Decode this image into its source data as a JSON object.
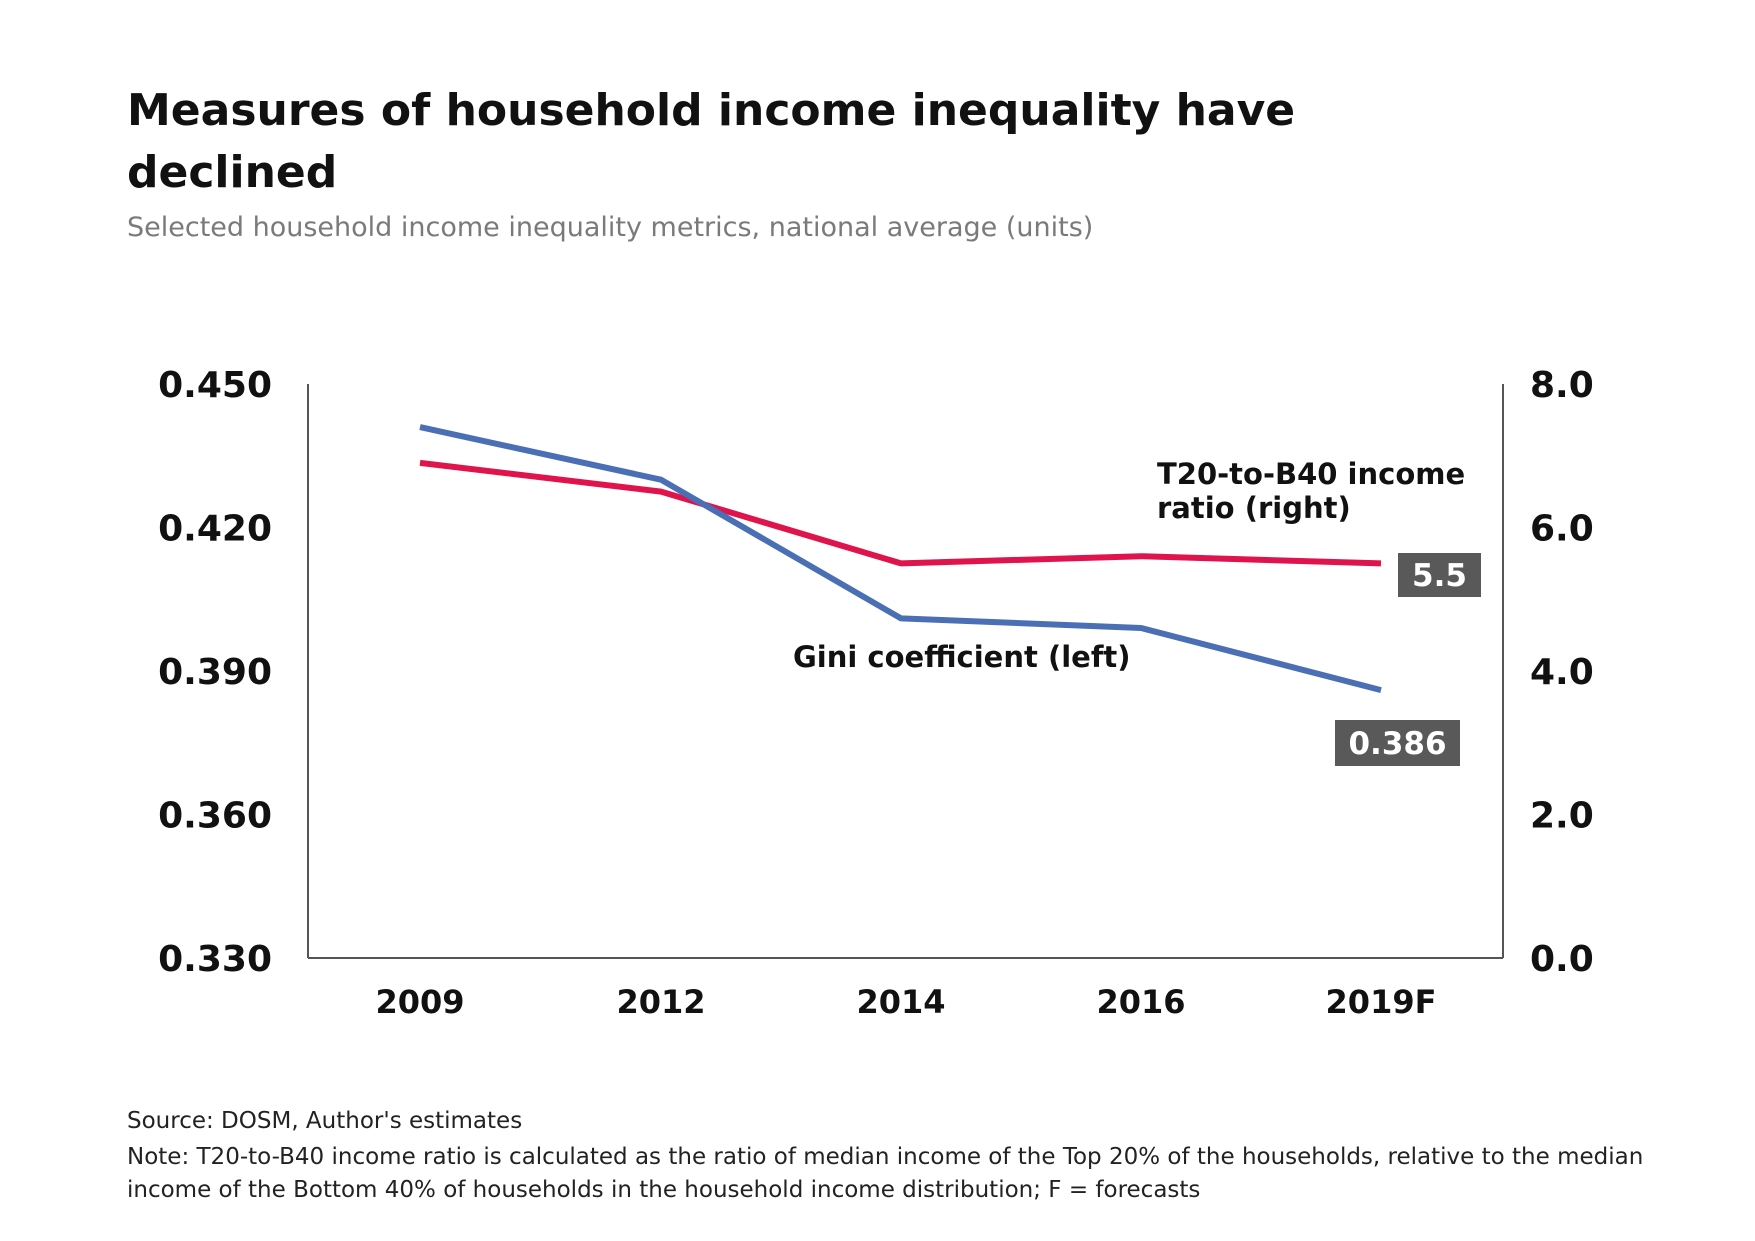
{
  "chart_data": {
    "type": "line",
    "title": "Measures of household income inequality have declined",
    "subtitle": "Selected household income inequality metrics, national average (units)",
    "categories": [
      "2009",
      "2012",
      "2014",
      "2016",
      "2019F"
    ],
    "y_left": {
      "ylim": [
        0.33,
        0.45
      ],
      "ticks": [
        "0.450",
        "0.420",
        "0.390",
        "0.360",
        "0.330"
      ],
      "tick_values": [
        0.45,
        0.42,
        0.39,
        0.36,
        0.33
      ]
    },
    "y_right": {
      "ylim": [
        0.0,
        8.0
      ],
      "ticks": [
        "8.0",
        "6.0",
        "4.0",
        "2.0",
        "0.0"
      ],
      "tick_values": [
        8.0,
        6.0,
        4.0,
        2.0,
        0.0
      ]
    },
    "series": [
      {
        "name": "Gini coefficient (left)",
        "axis": "left",
        "color": "#4a6fb5",
        "values": [
          0.441,
          0.43,
          0.401,
          0.399,
          0.386
        ],
        "end_label": "0.386"
      },
      {
        "name_lines": [
          "T20-to-B40 income",
          "ratio (right)"
        ],
        "axis": "right",
        "color": "#e0144c",
        "values": [
          6.9,
          6.5,
          5.5,
          5.6,
          5.5
        ],
        "end_label": "5.5"
      }
    ],
    "grid": false,
    "legend": "inline labels",
    "label_box_color": "#595959"
  },
  "source": "Source: DOSM, Author's estimates",
  "note": "Note: T20-to-B40 income ratio is calculated as the ratio of median income of the Top 20% of the households, relative to the median income of the Bottom 40% of households in the household income distribution; F = forecasts"
}
